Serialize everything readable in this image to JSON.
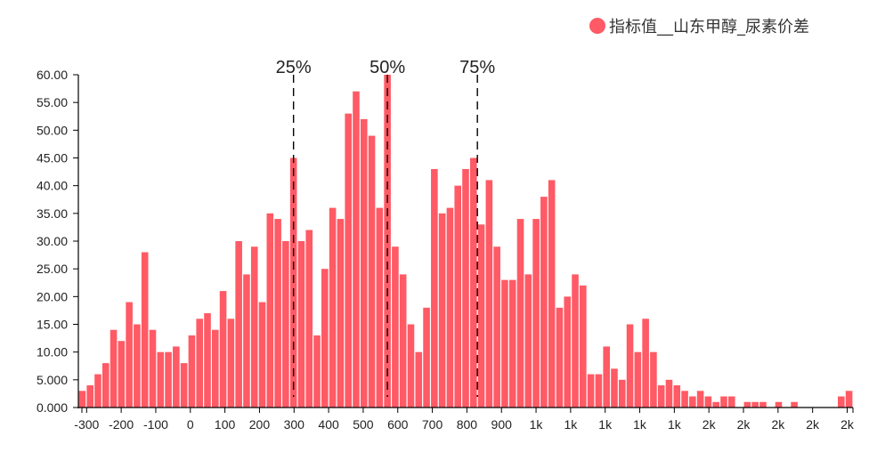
{
  "chart_data": {
    "type": "bar",
    "title": "",
    "xlabel": "",
    "ylabel": "",
    "ylim": [
      0,
      60
    ],
    "grid": false,
    "legend_position": "top-right",
    "series": [
      {
        "name": "指标值__山东甲醇_尿素价差",
        "color": "#FF5A65",
        "values": [
          3,
          4,
          6,
          8,
          14,
          12,
          19,
          15,
          28,
          14,
          10,
          10,
          11,
          8,
          13,
          16,
          17,
          14,
          21,
          16,
          30,
          24,
          29,
          19,
          35,
          34,
          30,
          45,
          30,
          32,
          13,
          25,
          36,
          34,
          53,
          57,
          52,
          49,
          36,
          60,
          29,
          24,
          15,
          10,
          18,
          43,
          35,
          36,
          40,
          43,
          45,
          33,
          41,
          29,
          23,
          23,
          34,
          24,
          34,
          38,
          41,
          18,
          20,
          24,
          22,
          6,
          6,
          11,
          7,
          5,
          15,
          10,
          16,
          10,
          4,
          5,
          4,
          3,
          2,
          3,
          2,
          1,
          2,
          2,
          0,
          1,
          1,
          1,
          0,
          1,
          0,
          1,
          0,
          0,
          0,
          0,
          0,
          2,
          3
        ]
      }
    ],
    "x_ticks": [
      "-300",
      "-200",
      "-100",
      "0",
      "100",
      "200",
      "300",
      "400",
      "500",
      "600",
      "700",
      "800",
      "900",
      "1k",
      "1k",
      "1k",
      "1k",
      "1k",
      "2k",
      "2k",
      "2k",
      "2k",
      "2k"
    ],
    "y_ticks": [
      "0.000",
      "5.000",
      "10.00",
      "15.00",
      "20.00",
      "25.00",
      "30.00",
      "35.00",
      "40.00",
      "45.00",
      "50.00",
      "55.00",
      "60.00"
    ],
    "percentile_markers": [
      {
        "label": "25%",
        "bin": 27
      },
      {
        "label": "50%",
        "bin": 39
      },
      {
        "label": "75%",
        "bin": 50.5
      }
    ]
  }
}
